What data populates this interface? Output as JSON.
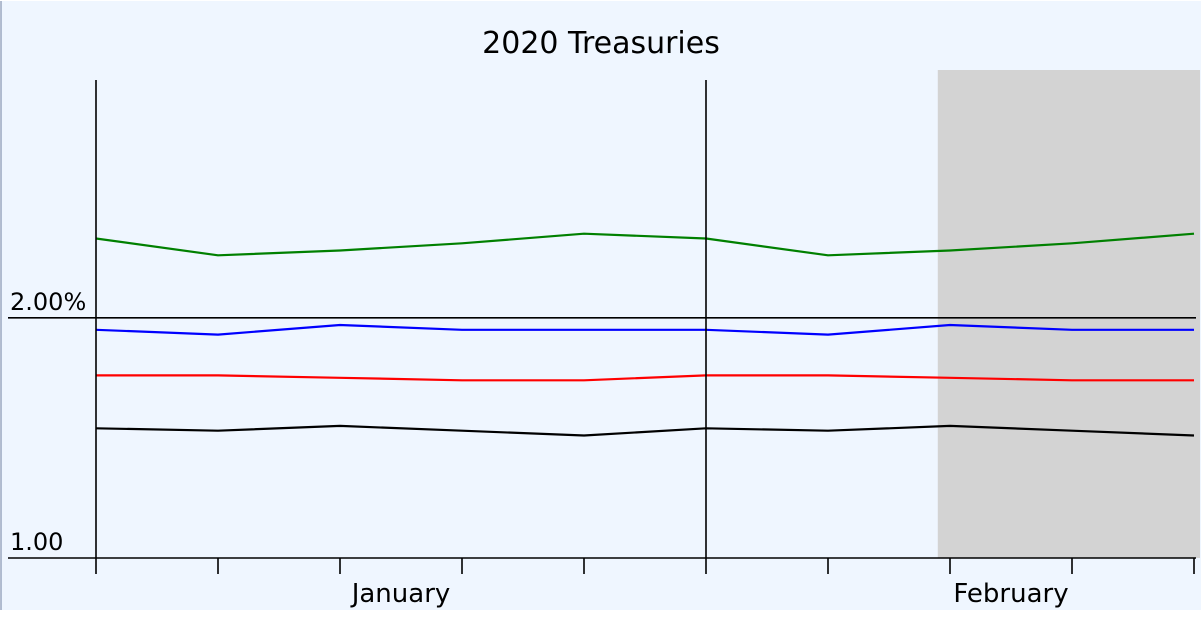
{
  "chart_data": {
    "type": "line",
    "title": "2020 Treasuries",
    "xlabel": "",
    "ylabel": "",
    "x": [
      0,
      1,
      2,
      3,
      4,
      5,
      6,
      7,
      8,
      9
    ],
    "x_tick_labels": [
      {
        "label": "January",
        "at": 2.5
      },
      {
        "label": "February",
        "at": 7.5
      }
    ],
    "y_ticks": [
      {
        "value": 2.0,
        "label": "2.00%"
      },
      {
        "value": 1.0,
        "label": "1.00"
      }
    ],
    "ylim": [
      1.0,
      2.99
    ],
    "xlim": [
      0,
      9
    ],
    "highlight_range": [
      6.9,
      9
    ],
    "grid": false,
    "legend": "none",
    "series": [
      {
        "color": "#008000",
        "values": [
          2.33,
          2.26,
          2.28,
          2.31,
          2.35,
          2.33,
          2.26,
          2.28,
          2.31,
          2.35
        ]
      },
      {
        "color": "#0000ff",
        "values": [
          1.95,
          1.93,
          1.97,
          1.95,
          1.95,
          1.95,
          1.93,
          1.97,
          1.95,
          1.95
        ]
      },
      {
        "color": "#ff0000",
        "values": [
          1.76,
          1.76,
          1.75,
          1.74,
          1.74,
          1.76,
          1.76,
          1.75,
          1.74,
          1.74
        ]
      },
      {
        "color": "#000000",
        "values": [
          1.54,
          1.53,
          1.55,
          1.53,
          1.51,
          1.54,
          1.53,
          1.55,
          1.53,
          1.51
        ]
      }
    ],
    "colors": {
      "background": "#eff6ff",
      "highlight": "#d3d3d3",
      "axis": "#000000"
    }
  }
}
